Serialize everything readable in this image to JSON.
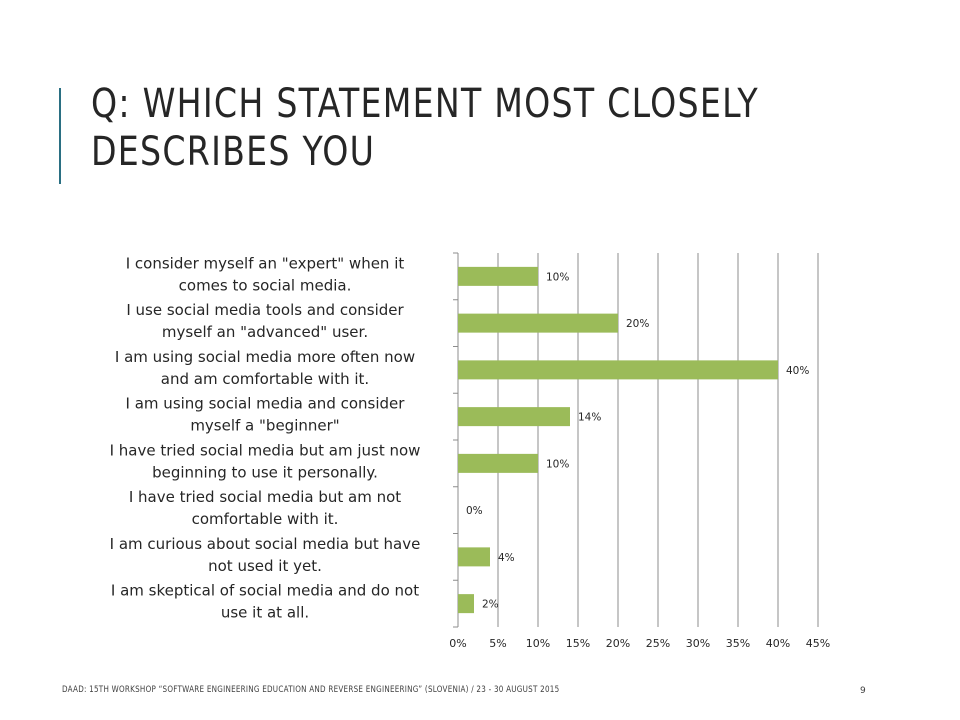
{
  "slide": {
    "title": "Q: Which statement most closely describes you",
    "footer": "DAAD: 15th Workshop “Software Engineering Education and Reverse Engineering” (Slovenia) / 23 - 30 August 2015",
    "page_number": "9"
  },
  "colors": {
    "bar": "#9bbb59",
    "accent": "#2a6f82",
    "grid": "#8c8c8c"
  },
  "chart_data": {
    "type": "bar",
    "orientation": "horizontal",
    "categories": [
      [
        "I consider myself an \"expert\" when it",
        "comes to social media."
      ],
      [
        "I use social media tools and consider",
        "myself an \"advanced\" user."
      ],
      [
        "I am using social media more often now",
        "and am comfortable with it."
      ],
      [
        "I am using social media and consider",
        "myself a \"beginner\""
      ],
      [
        "I have tried social media but am just now",
        "beginning to use it personally."
      ],
      [
        "I have tried social media but am not",
        "comfortable with it."
      ],
      [
        "I am curious about social media but have",
        "not used it yet."
      ],
      [
        "I am skeptical of social media and do not",
        "use it at all."
      ]
    ],
    "values": [
      10,
      20,
      40,
      14,
      10,
      0,
      4,
      2
    ],
    "data_labels": [
      "10%",
      "20%",
      "40%",
      "14%",
      "10%",
      "0%",
      "4%",
      "2%"
    ],
    "x_ticks": [
      "0%",
      "5%",
      "10%",
      "15%",
      "20%",
      "25%",
      "30%",
      "35%",
      "40%",
      "45%"
    ],
    "xlim": [
      0,
      45
    ],
    "grid": true
  }
}
